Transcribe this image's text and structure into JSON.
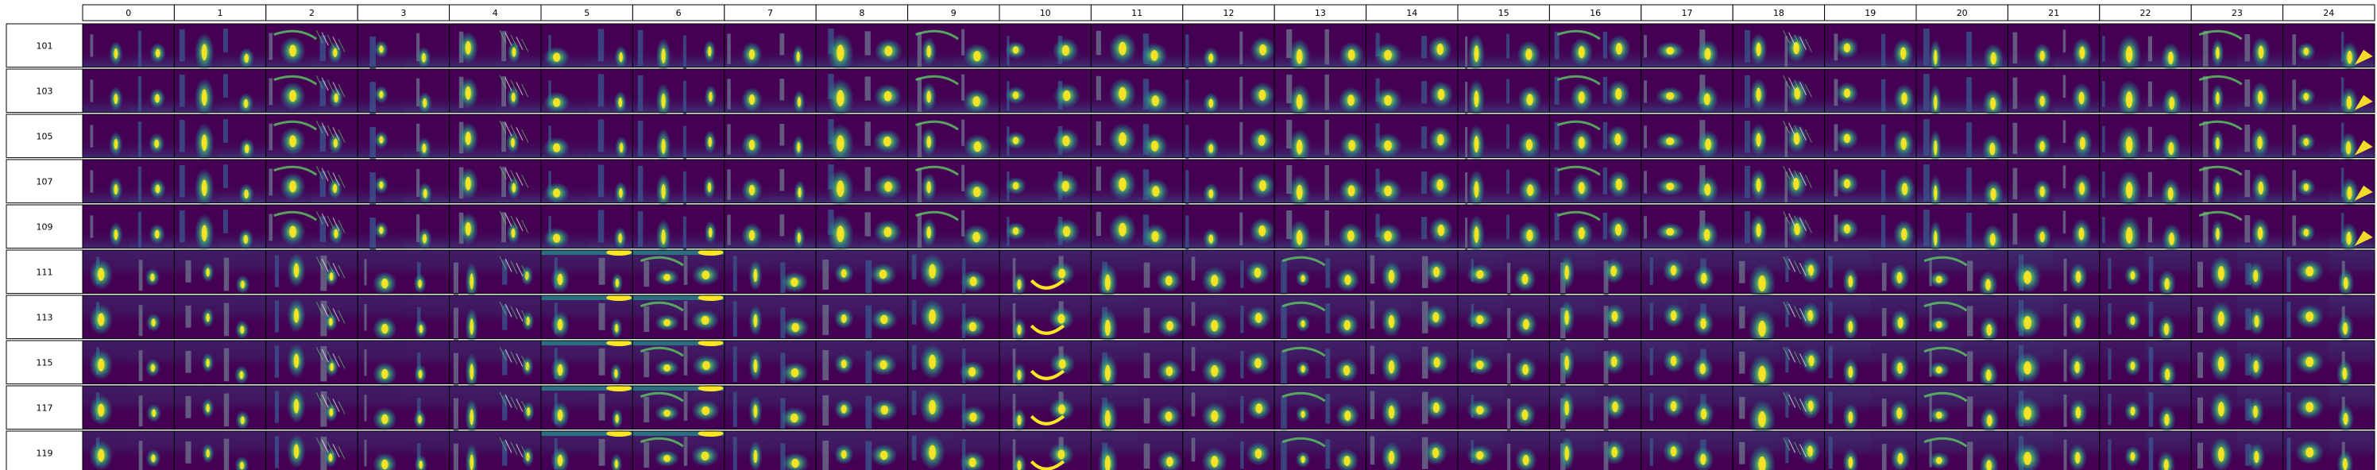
{
  "chart_data": {
    "type": "heatmap",
    "layout": "image-grid",
    "colormap": "viridis",
    "colormap_stops": [
      "#440154",
      "#3b528b",
      "#21918c",
      "#5ec962",
      "#fde725"
    ],
    "column_labels": [
      "0",
      "1",
      "2",
      "3",
      "4",
      "5",
      "6",
      "7",
      "8",
      "9",
      "10",
      "11",
      "12",
      "13",
      "14",
      "15",
      "16",
      "17",
      "18",
      "19",
      "20",
      "21",
      "22",
      "23",
      "24"
    ],
    "row_labels": [
      "101",
      "103",
      "105",
      "107",
      "109",
      "111",
      "113",
      "115",
      "117",
      "119"
    ],
    "row_groups": [
      {
        "rows": [
          "101",
          "103",
          "105",
          "107",
          "109"
        ],
        "style": "group-a"
      },
      {
        "rows": [
          "111",
          "113",
          "115",
          "117",
          "119"
        ],
        "style": "group-b"
      }
    ]
  }
}
